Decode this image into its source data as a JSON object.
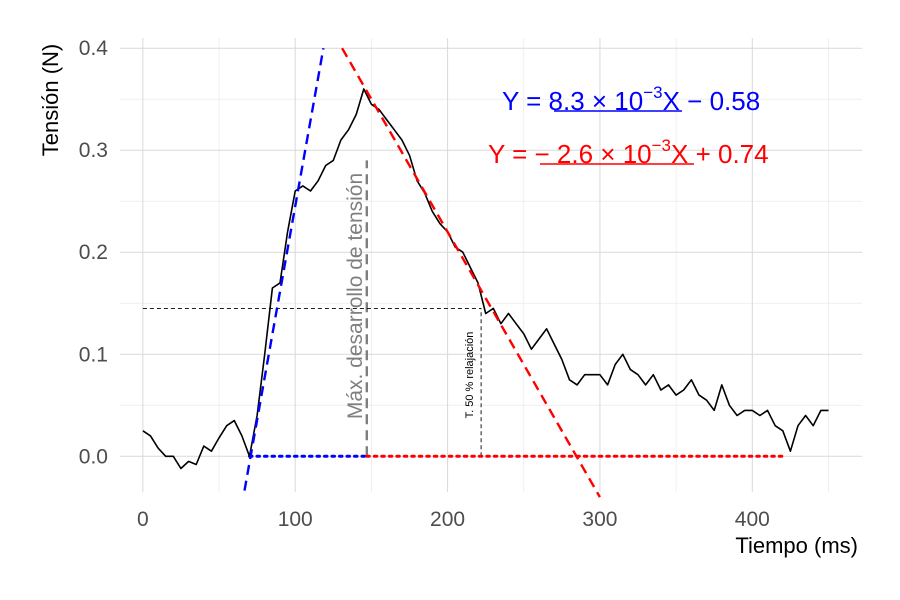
{
  "chart_data": {
    "type": "line",
    "title": "",
    "xlabel": "Tiempo (ms)",
    "ylabel": "Tensión (N)",
    "xlim": [
      -15,
      472
    ],
    "ylim": [
      -0.035,
      0.41
    ],
    "x_ticks": [
      0,
      100,
      200,
      300,
      400
    ],
    "y_ticks": [
      0.0,
      0.1,
      0.2,
      0.3,
      0.4
    ],
    "x_tick_labels": [
      "0",
      "100",
      "200",
      "300",
      "400"
    ],
    "y_tick_labels": [
      "0.0",
      "0.1",
      "0.2",
      "0.3",
      "0.4"
    ],
    "grid": true,
    "series": [
      {
        "type": "line",
        "color": "#000000",
        "style": "solid",
        "x": [
          0,
          5,
          10,
          15,
          20,
          25,
          30,
          35,
          40,
          45,
          50,
          55,
          60,
          65,
          70,
          75,
          80,
          85,
          90,
          95,
          100,
          105,
          110,
          115,
          120,
          125,
          130,
          135,
          140,
          145,
          150,
          155,
          160,
          165,
          170,
          175,
          180,
          185,
          190,
          195,
          200,
          205,
          210,
          215,
          220,
          225,
          230,
          235,
          240,
          245,
          250,
          255,
          260,
          265,
          270,
          275,
          280,
          285,
          290,
          295,
          300,
          305,
          310,
          315,
          320,
          325,
          330,
          335,
          340,
          345,
          350,
          355,
          360,
          365,
          370,
          375,
          380,
          385,
          390,
          395,
          400,
          405,
          410,
          415,
          420,
          425,
          430,
          435,
          440,
          445,
          450
        ],
        "y": [
          0.025,
          0.02,
          0.008,
          0.0,
          0.0,
          -0.012,
          -0.005,
          -0.008,
          0.01,
          0.005,
          0.018,
          0.03,
          0.035,
          0.02,
          0.0,
          0.04,
          0.1,
          0.165,
          0.17,
          0.22,
          0.26,
          0.265,
          0.26,
          0.27,
          0.285,
          0.29,
          0.31,
          0.32,
          0.335,
          0.36,
          0.345,
          0.34,
          0.33,
          0.32,
          0.31,
          0.295,
          0.27,
          0.258,
          0.24,
          0.228,
          0.22,
          0.205,
          0.2,
          0.185,
          0.17,
          0.14,
          0.145,
          0.13,
          0.14,
          0.13,
          0.12,
          0.105,
          0.115,
          0.125,
          0.11,
          0.095,
          0.075,
          0.07,
          0.08,
          0.08,
          0.08,
          0.07,
          0.09,
          0.1,
          0.085,
          0.08,
          0.07,
          0.08,
          0.065,
          0.07,
          0.06,
          0.065,
          0.075,
          0.06,
          0.055,
          0.045,
          0.07,
          0.05,
          0.04,
          0.045,
          0.045,
          0.04,
          0.045,
          0.03,
          0.025,
          0.005,
          0.03,
          0.04,
          0.03,
          0.045,
          0.045
        ]
      },
      {
        "type": "line",
        "color": "#0000ff",
        "style": "dashed",
        "x": [
          66.7,
          118.5
        ],
        "y": [
          -0.0336,
          0.4
        ]
      },
      {
        "type": "line",
        "color": "#ff0000",
        "style": "dashed",
        "x": [
          130.8,
          300
        ],
        "y": [
          0.4,
          -0.04
        ]
      },
      {
        "type": "line",
        "color": "#0000ff",
        "style": "dotted",
        "x": [
          70,
          147
        ],
        "y": [
          0,
          0
        ]
      },
      {
        "type": "line",
        "color": "#ff0000",
        "style": "dotted",
        "x": [
          147,
          420
        ],
        "y": [
          0,
          0
        ]
      },
      {
        "type": "line",
        "color": "#7f7f7f",
        "style": "dashed",
        "x": [
          147,
          147
        ],
        "y": [
          0,
          0.29
        ]
      },
      {
        "type": "line",
        "color": "#000000",
        "style": "dashed",
        "x": [
          0,
          222
        ],
        "y": [
          0.145,
          0.145
        ]
      },
      {
        "type": "line",
        "color": "#000000",
        "style": "dashed",
        "x": [
          222,
          222
        ],
        "y": [
          0,
          0.145
        ]
      }
    ],
    "annotations": {
      "max_label": "Máx. desarrollo de tensión",
      "relax_label": "T. 50 % relajación",
      "eq_blue": {
        "prefix": "Y = ",
        "coef": "8.3 × 10",
        "exp": "−3",
        "suffix": "X − 0.58",
        "color": "#0000ff"
      },
      "eq_red": {
        "prefix": "Y = ",
        "coef": "− 2.6 × 10",
        "exp": "−3",
        "suffix": "X + 0.74",
        "color": "#ff0000"
      }
    }
  }
}
